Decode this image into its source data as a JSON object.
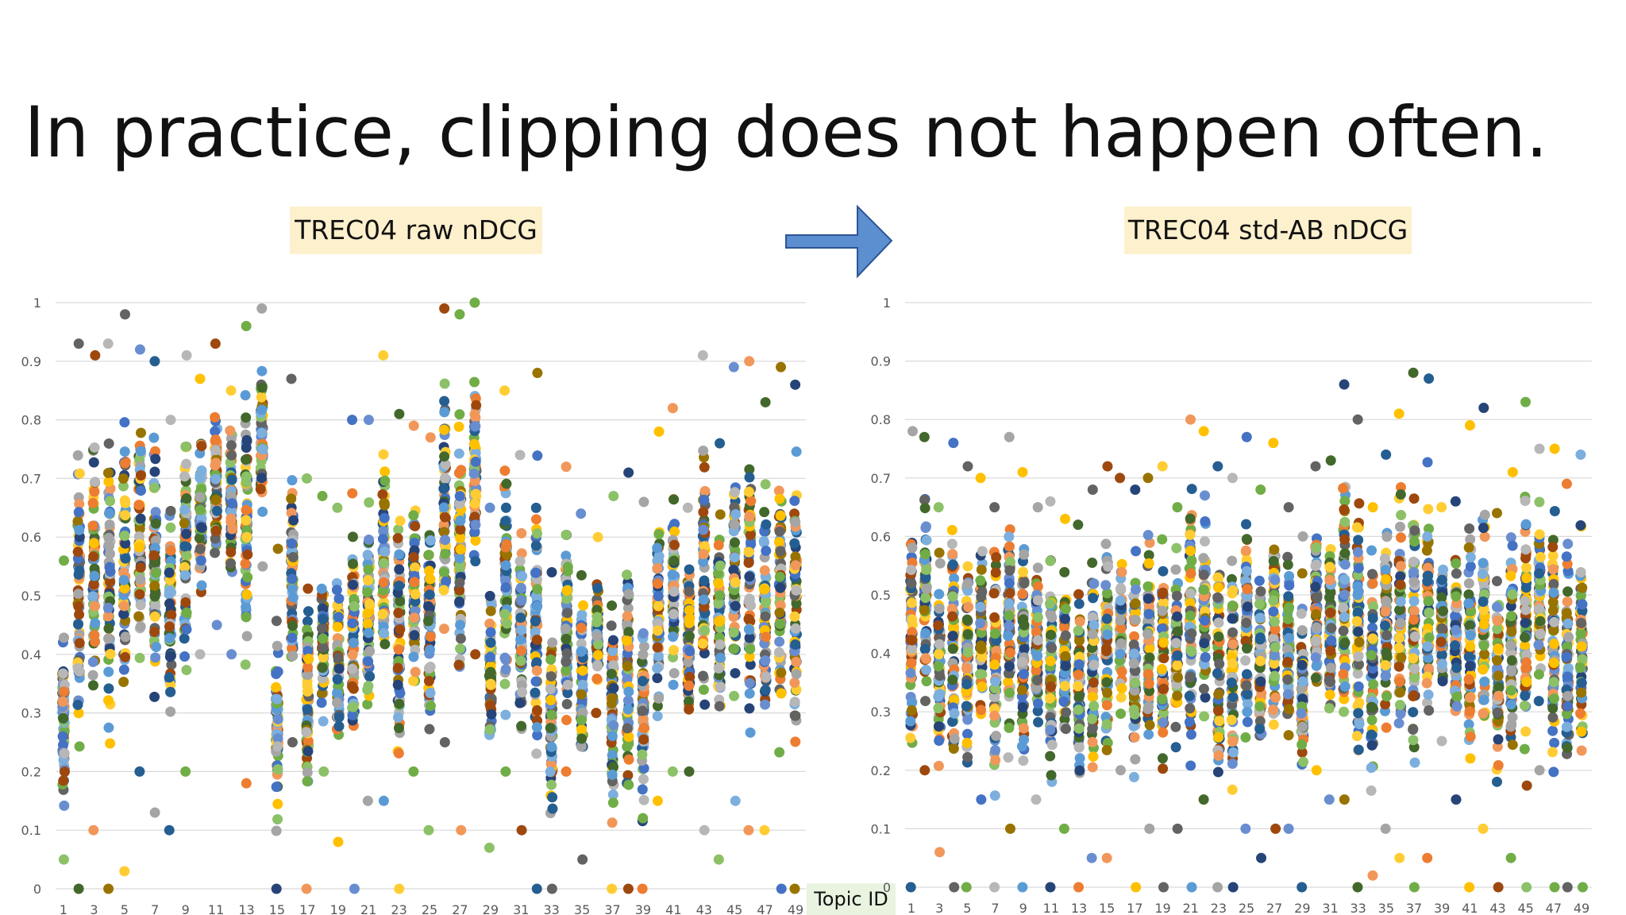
{
  "title": "In practice, clipping does not happen often.",
  "x_axis_label": "Topic ID",
  "palette": [
    "#4472c4",
    "#ed7d31",
    "#a5a5a5",
    "#ffc000",
    "#5b9bd5",
    "#70ad47",
    "#264478",
    "#9e480e",
    "#636363",
    "#997300",
    "#255e91",
    "#43682b",
    "#698ed0",
    "#f1975a",
    "#b7b7b7",
    "#ffcd33",
    "#7cafdd",
    "#8cc168"
  ],
  "chart_data": [
    {
      "type": "scatter",
      "title": "TREC04 raw nDCG",
      "xlabel": "",
      "ylabel": "",
      "ylim": [
        0,
        1
      ],
      "grid": true,
      "x_tick_labels": [
        "1",
        "3",
        "5",
        "7",
        "9",
        "11",
        "13",
        "15",
        "17",
        "19",
        "21",
        "23",
        "25",
        "27",
        "29",
        "31",
        "33",
        "35",
        "37",
        "39",
        "41",
        "43",
        "45",
        "47",
        "49"
      ],
      "y_tick_labels": [
        "0",
        "0.1",
        "0.2",
        "0.3",
        "0.4",
        "0.5",
        "0.6",
        "0.7",
        "0.8",
        "0.9",
        "1"
      ],
      "topics": [
        1,
        2,
        3,
        4,
        5,
        6,
        7,
        8,
        9,
        10,
        11,
        12,
        13,
        14,
        15,
        16,
        17,
        18,
        19,
        20,
        21,
        22,
        23,
        24,
        25,
        26,
        27,
        28,
        29,
        30,
        31,
        32,
        33,
        34,
        35,
        36,
        37,
        38,
        39,
        40,
        41,
        42,
        43,
        44,
        45,
        46,
        47,
        48,
        49
      ],
      "min": [
        0.05,
        0,
        0.1,
        0,
        0.03,
        0.2,
        0.13,
        0.1,
        0.2,
        0.4,
        0.45,
        0.4,
        0.18,
        0.55,
        0,
        0.25,
        0,
        0.2,
        0.08,
        0,
        0.15,
        0.15,
        0,
        0.2,
        0.1,
        0.25,
        0.1,
        0.4,
        0.07,
        0.2,
        0.1,
        0,
        0,
        0.2,
        0.05,
        0.3,
        0,
        0,
        0,
        0.15,
        0.2,
        0.2,
        0.1,
        0.05,
        0.15,
        0.1,
        0.1,
        0,
        0
      ],
      "max": [
        0.56,
        0.93,
        0.91,
        0.93,
        0.98,
        0.92,
        0.9,
        0.8,
        0.91,
        0.87,
        0.93,
        0.85,
        0.96,
        0.99,
        0.58,
        0.87,
        0.7,
        0.67,
        0.65,
        0.8,
        0.8,
        0.91,
        0.81,
        0.79,
        0.77,
        0.99,
        0.98,
        1.0,
        0.65,
        0.85,
        0.74,
        0.88,
        0.54,
        0.72,
        0.64,
        0.6,
        0.67,
        0.71,
        0.66,
        0.78,
        0.82,
        0.65,
        0.91,
        0.76,
        0.89,
        0.9,
        0.83,
        0.89,
        0.86
      ],
      "center": [
        0.28,
        0.58,
        0.62,
        0.62,
        0.68,
        0.68,
        0.58,
        0.55,
        0.65,
        0.68,
        0.7,
        0.72,
        0.7,
        0.8,
        0.25,
        0.5,
        0.35,
        0.42,
        0.42,
        0.45,
        0.5,
        0.6,
        0.55,
        0.5,
        0.55,
        0.75,
        0.62,
        0.75,
        0.38,
        0.5,
        0.45,
        0.5,
        0.3,
        0.42,
        0.4,
        0.42,
        0.25,
        0.35,
        0.3,
        0.5,
        0.55,
        0.45,
        0.6,
        0.5,
        0.6,
        0.6,
        0.55,
        0.6,
        0.6
      ]
    },
    {
      "type": "scatter",
      "title": "TREC04 std-AB nDCG",
      "xlabel": "",
      "ylabel": "",
      "ylim": [
        0,
        1
      ],
      "grid": true,
      "x_tick_labels": [
        "1",
        "3",
        "5",
        "7",
        "9",
        "11",
        "13",
        "15",
        "17",
        "19",
        "21",
        "23",
        "25",
        "27",
        "29",
        "31",
        "33",
        "35",
        "37",
        "39",
        "41",
        "43",
        "45",
        "47",
        "49"
      ],
      "y_tick_labels": [
        "0",
        "0.1",
        "0.2",
        "0.3",
        "0.4",
        "0.5",
        "0.6",
        "0.7",
        "0.8",
        "0.9",
        "1"
      ],
      "topics": [
        1,
        2,
        3,
        4,
        5,
        6,
        7,
        8,
        9,
        10,
        11,
        12,
        13,
        14,
        15,
        16,
        17,
        18,
        19,
        20,
        21,
        22,
        23,
        24,
        25,
        26,
        27,
        28,
        29,
        30,
        31,
        32,
        33,
        34,
        35,
        36,
        37,
        38,
        39,
        40,
        41,
        42,
        43,
        44,
        45,
        46,
        47,
        48,
        49
      ],
      "min": [
        0,
        0.2,
        0.06,
        0,
        0,
        0.15,
        0,
        0.1,
        0,
        0.15,
        0,
        0.1,
        0,
        0.05,
        0.05,
        0.2,
        0,
        0.1,
        0,
        0.1,
        0,
        0.15,
        0,
        0,
        0.1,
        0.05,
        0.1,
        0.1,
        0,
        0.2,
        0.15,
        0.15,
        0,
        0.02,
        0.1,
        0.05,
        0,
        0.05,
        0.25,
        0.15,
        0,
        0.1,
        0,
        0.05,
        0,
        0.2,
        0,
        0,
        0
      ],
      "max": [
        0.78,
        0.77,
        0.65,
        0.76,
        0.72,
        0.7,
        0.65,
        0.77,
        0.71,
        0.65,
        0.66,
        0.63,
        0.62,
        0.68,
        0.72,
        0.7,
        0.68,
        0.7,
        0.72,
        0.65,
        0.8,
        0.78,
        0.72,
        0.7,
        0.77,
        0.68,
        0.76,
        0.65,
        0.6,
        0.72,
        0.73,
        0.86,
        0.8,
        0.65,
        0.74,
        0.81,
        0.88,
        0.87,
        0.65,
        0.66,
        0.79,
        0.82,
        0.64,
        0.71,
        0.83,
        0.75,
        0.75,
        0.69,
        0.74
      ],
      "center": [
        0.55,
        0.5,
        0.45,
        0.5,
        0.48,
        0.48,
        0.5,
        0.45,
        0.5,
        0.45,
        0.45,
        0.42,
        0.42,
        0.45,
        0.48,
        0.45,
        0.48,
        0.5,
        0.48,
        0.45,
        0.5,
        0.5,
        0.48,
        0.45,
        0.48,
        0.45,
        0.48,
        0.45,
        0.45,
        0.5,
        0.48,
        0.52,
        0.5,
        0.45,
        0.5,
        0.5,
        0.52,
        0.5,
        0.45,
        0.45,
        0.48,
        0.48,
        0.45,
        0.48,
        0.5,
        0.48,
        0.48,
        0.45,
        0.5
      ]
    }
  ]
}
